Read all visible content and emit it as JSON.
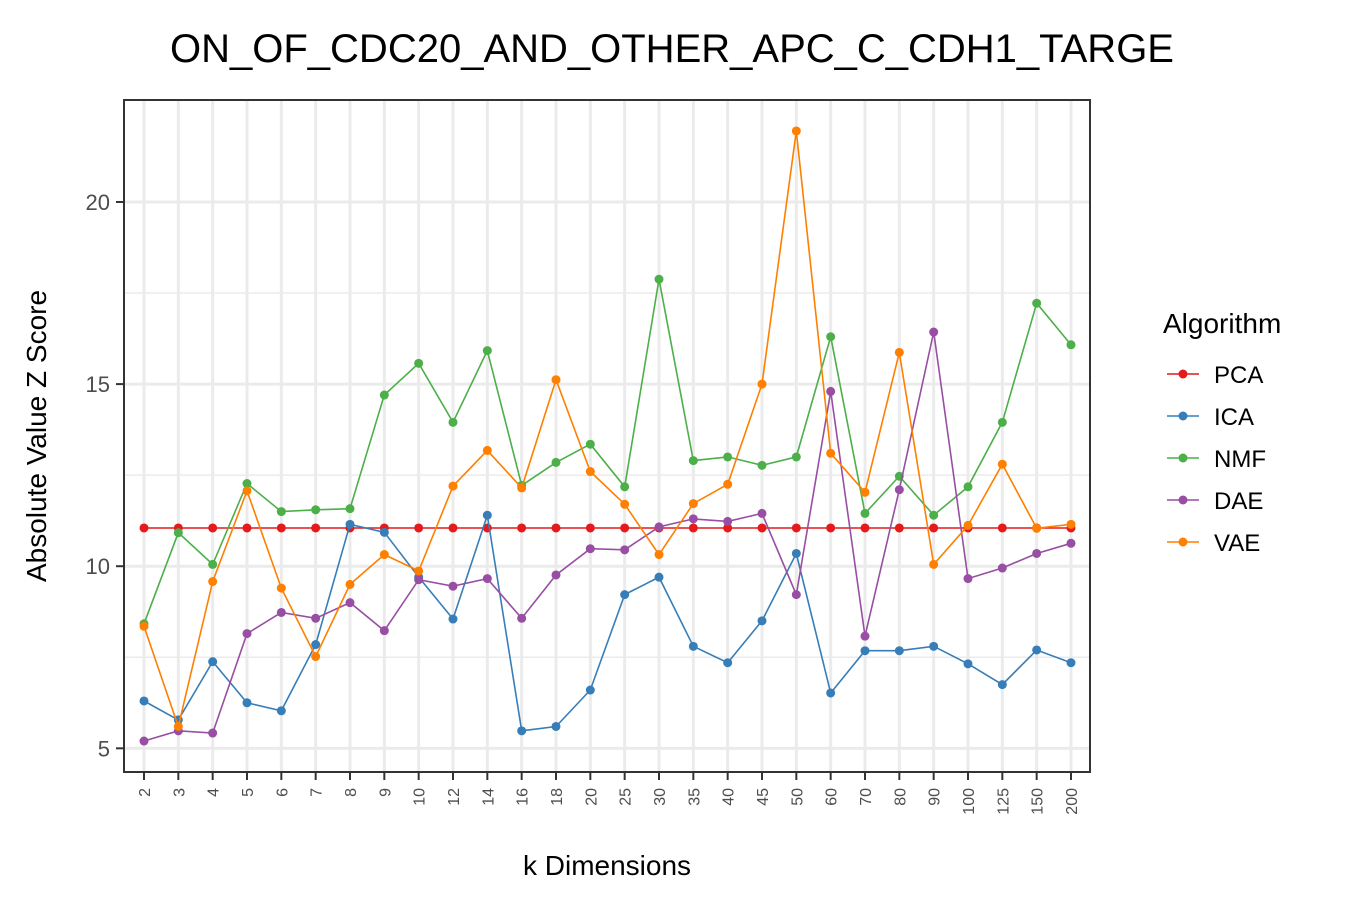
{
  "chart_data": {
    "type": "line",
    "title": "ON_OF_CDC20_AND_OTHER_APC_C_CDH1_TARGE",
    "xlabel": "k Dimensions",
    "ylabel": "Absolute Value Z Score",
    "categories": [
      "2",
      "3",
      "4",
      "5",
      "6",
      "7",
      "8",
      "9",
      "10",
      "12",
      "14",
      "16",
      "18",
      "20",
      "25",
      "30",
      "35",
      "40",
      "45",
      "50",
      "60",
      "70",
      "80",
      "90",
      "100",
      "125",
      "150",
      "200"
    ],
    "yticks": [
      5,
      10,
      15,
      20
    ],
    "ylim": [
      4.35,
      22.8
    ],
    "grid": true,
    "legend_title": "Algorithm",
    "legend_position": "right",
    "series": [
      {
        "name": "PCA",
        "color": "#e41a1c",
        "values": [
          11.05,
          11.05,
          11.05,
          11.05,
          11.05,
          11.05,
          11.05,
          11.05,
          11.05,
          11.05,
          11.05,
          11.05,
          11.05,
          11.05,
          11.05,
          11.05,
          11.05,
          11.05,
          11.05,
          11.05,
          11.05,
          11.05,
          11.05,
          11.05,
          11.05,
          11.05,
          11.05,
          11.05
        ]
      },
      {
        "name": "ICA",
        "color": "#377eb8",
        "values": [
          6.3,
          5.78,
          7.38,
          6.25,
          6.03,
          7.85,
          11.15,
          10.93,
          9.7,
          8.55,
          11.4,
          5.48,
          5.6,
          6.6,
          9.22,
          9.7,
          7.8,
          7.35,
          8.5,
          10.35,
          6.52,
          7.68,
          7.68,
          7.8,
          7.32,
          6.75,
          7.7,
          7.35
        ]
      },
      {
        "name": "NMF",
        "color": "#4daf4a",
        "values": [
          8.42,
          10.92,
          10.05,
          12.27,
          11.5,
          11.55,
          11.58,
          14.7,
          15.57,
          13.95,
          15.92,
          12.22,
          12.85,
          13.35,
          12.18,
          17.88,
          12.9,
          13.0,
          12.77,
          13.0,
          16.3,
          11.45,
          12.47,
          11.4,
          12.18,
          13.95,
          17.22,
          16.08
        ]
      },
      {
        "name": "DAE",
        "color": "#984ea3",
        "values": [
          5.2,
          5.48,
          5.42,
          8.15,
          8.73,
          8.57,
          9.0,
          8.23,
          9.63,
          9.45,
          9.66,
          8.57,
          9.76,
          10.48,
          10.45,
          11.08,
          11.3,
          11.23,
          11.45,
          9.22,
          14.8,
          8.08,
          12.1,
          16.43,
          9.66,
          9.95,
          10.35,
          10.63
        ]
      },
      {
        "name": "VAE",
        "color": "#ff7f00",
        "values": [
          8.35,
          5.6,
          9.58,
          12.07,
          9.4,
          7.52,
          9.5,
          10.32,
          9.87,
          12.2,
          13.18,
          12.15,
          15.12,
          12.6,
          11.7,
          10.32,
          11.72,
          12.25,
          15.0,
          21.95,
          13.1,
          12.03,
          15.87,
          10.05,
          11.12,
          12.8,
          11.04,
          11.15
        ]
      }
    ]
  }
}
